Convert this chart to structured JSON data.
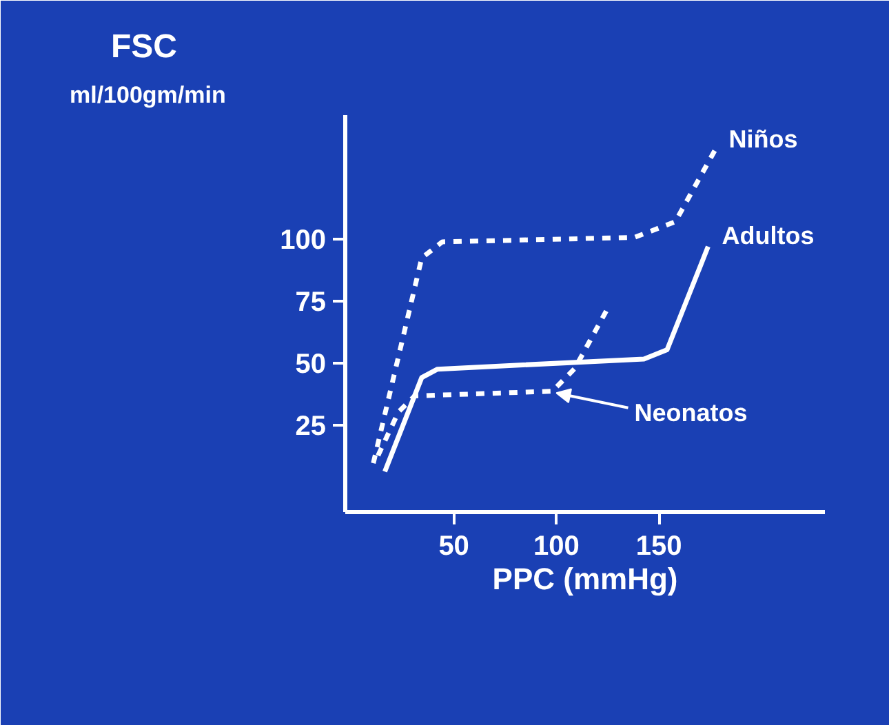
{
  "chart_data": {
    "type": "line",
    "title": "FSC",
    "subtitle": "ml/100gm/min",
    "xlabel": "PPC (mmHg)",
    "xlim": [
      -3,
      231
    ],
    "ylim": [
      -10,
      150
    ],
    "xticks": [
      50,
      100,
      150
    ],
    "yticks": [
      25,
      50,
      75,
      100
    ],
    "grid": false,
    "tick_labels": "xy",
    "series": [
      {
        "color": "#ffffff",
        "line_style": "dashed",
        "x": [
          10.7,
          34.3,
          44.3,
          138,
          158,
          177.4
        ],
        "values": [
          9.7,
          92.4,
          98.9,
          100.7,
          107,
          135.9
        ]
      },
      {
        "color": "#ffffff",
        "line_style": "solid",
        "x": [
          16.3,
          34.3,
          42,
          142.7,
          154,
          174
        ],
        "values": [
          6.3,
          44.2,
          47.6,
          51.7,
          55.4,
          97
        ]
      },
      {
        "color": "#ffffff",
        "line_style": "dashed",
        "x": [
          13,
          23,
          30.9,
          98,
          109,
          124.9
        ],
        "values": [
          12.8,
          30.4,
          36.8,
          38.7,
          47.9,
          71.9
        ]
      }
    ],
    "annotations": [
      {
        "text": "Niños",
        "x": 177.4,
        "y": 135.9
      },
      {
        "text": "Adultos",
        "x": 174,
        "y": 97
      },
      {
        "text": "Neonatos",
        "x": 100,
        "y": 38
      }
    ]
  }
}
